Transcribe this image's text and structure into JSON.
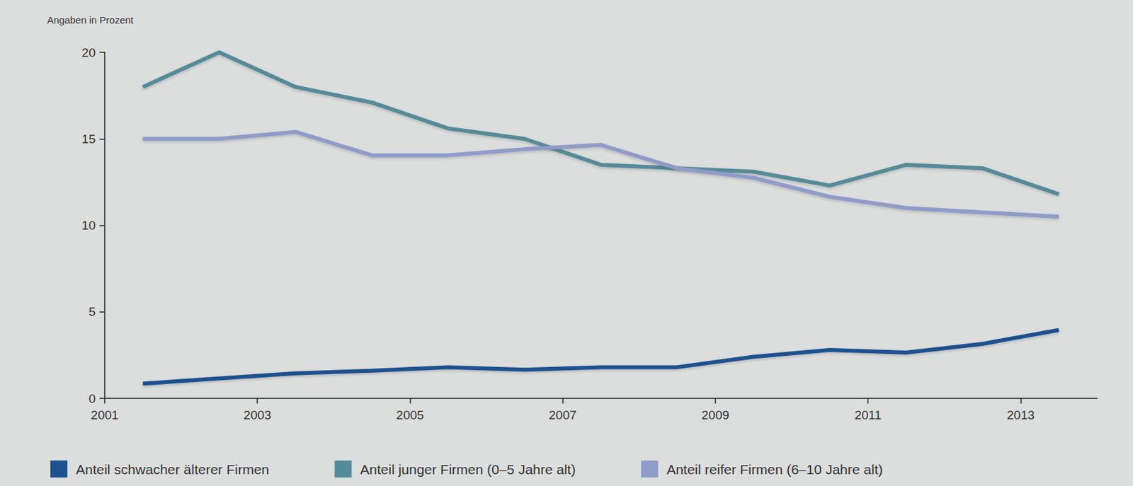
{
  "chart_data": {
    "type": "line",
    "y_label": "Angaben in Prozent",
    "x": [
      2001.5,
      2002.5,
      2003.5,
      2004.5,
      2005.5,
      2006.5,
      2007.5,
      2008.5,
      2009.5,
      2010.5,
      2011.5,
      2012.5,
      2013.5
    ],
    "series": [
      {
        "name": "Anteil schwacher älterer Firmen",
        "color": "#1f5190",
        "values": [
          0.85,
          1.15,
          1.45,
          1.6,
          1.8,
          1.65,
          1.8,
          1.8,
          2.4,
          2.8,
          2.65,
          3.15,
          3.95
        ]
      },
      {
        "name": "Anteil junger Firmen (0–5 Jahre alt)",
        "color": "#548b98",
        "values": [
          18,
          20,
          18,
          17.1,
          15.6,
          15.0,
          13.5,
          13.3,
          13.1,
          12.3,
          13.5,
          13.3,
          11.8
        ]
      },
      {
        "name": "Anteil reifer Firmen (6–10 Jahre alt)",
        "color": "#8f9bc8",
        "values": [
          15,
          15,
          15.4,
          14.05,
          14.05,
          14.4,
          14.65,
          13.3,
          12.75,
          11.65,
          11.0,
          10.75,
          10.5
        ]
      }
    ],
    "xlim": [
      2001,
      2014
    ],
    "xticks": [
      2001,
      2003,
      2005,
      2007,
      2009,
      2011,
      2013
    ],
    "ylim": [
      0,
      20
    ],
    "yticks": [
      0,
      5,
      10,
      15,
      20
    ],
    "grid": false,
    "legend": "bottom"
  }
}
